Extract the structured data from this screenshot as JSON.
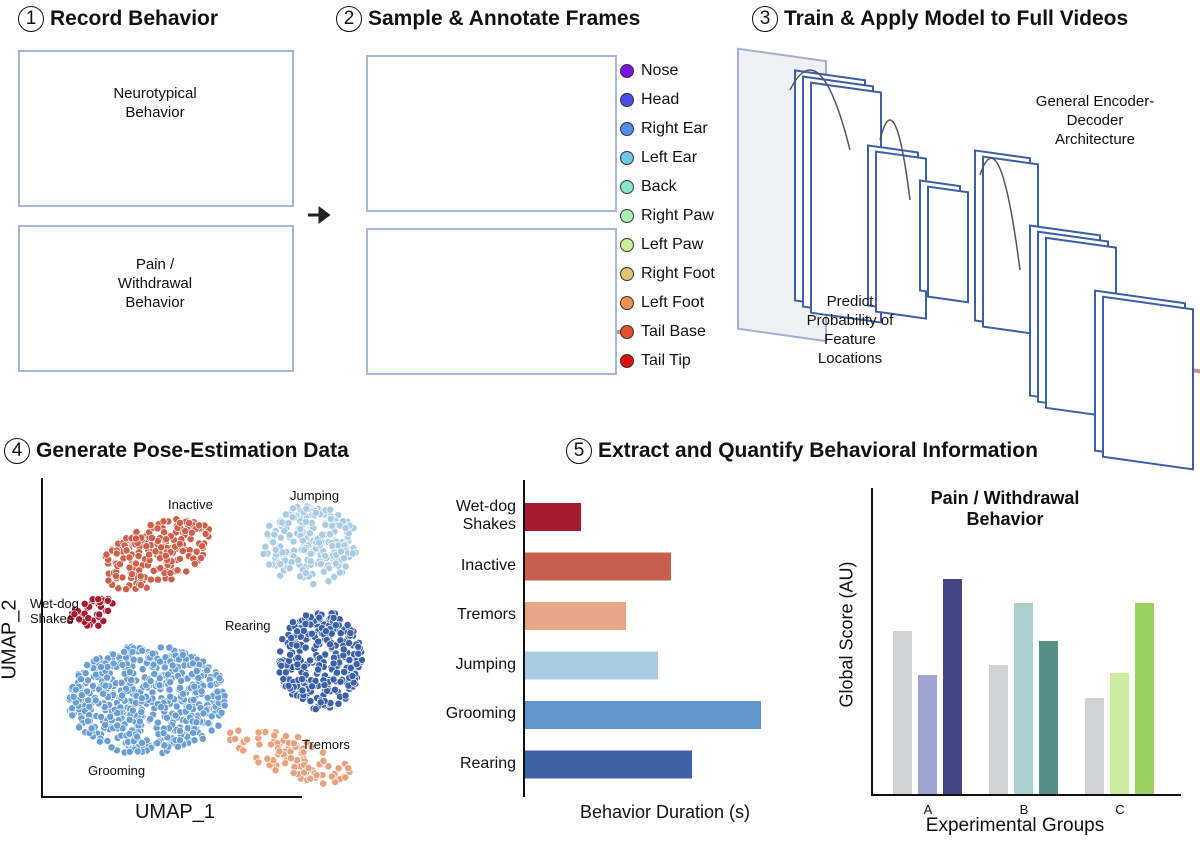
{
  "panels": {
    "p1": {
      "num": "1",
      "title": "Record Behavior",
      "video1": "Neurotypical\nBehavior",
      "video2": "Pain /\nWithdrawal\nBehavior"
    },
    "p2": {
      "num": "2",
      "title": "Sample & Annotate Frames"
    },
    "p3": {
      "num": "3",
      "title": "Train & Apply Model to Full Videos",
      "arch": "General Encoder-\nDecoder\nArchitecture",
      "predict": "Predict\nProbability of\nFeature\nLocations"
    },
    "p4": {
      "num": "4",
      "title": "Generate Pose-Estimation Data"
    },
    "p5": {
      "num": "5",
      "title": "Extract and Quantify Behavioral Information"
    }
  },
  "legend": [
    {
      "label": "Nose",
      "color": "#7a12e0"
    },
    {
      "label": "Head",
      "color": "#4a4ee8"
    },
    {
      "label": "Right Ear",
      "color": "#4f8ff0"
    },
    {
      "label": "Left Ear",
      "color": "#6cc8e6"
    },
    {
      "label": "Back",
      "color": "#84e6cf"
    },
    {
      "label": "Right Paw",
      "color": "#a6f0b6"
    },
    {
      "label": "Left Paw",
      "color": "#c9ef98"
    },
    {
      "label": "Right Foot",
      "color": "#dcc46e"
    },
    {
      "label": "Left Foot",
      "color": "#ec9250"
    },
    {
      "label": "Tail Base",
      "color": "#e2522e"
    },
    {
      "label": "Tail Tip",
      "color": "#e00f0f"
    }
  ],
  "chart_data": [
    {
      "type": "scatter",
      "xlabel": "UMAP_1",
      "ylabel": "UMAP_2",
      "clusters": [
        {
          "name": "Inactive",
          "color": "#cd5f4b"
        },
        {
          "name": "Wet-dog Shakes",
          "color": "#a51c30"
        },
        {
          "name": "Jumping",
          "color": "#a9cce3"
        },
        {
          "name": "Rearing",
          "color": "#3a60a8"
        },
        {
          "name": "Grooming",
          "color": "#6a9fd3"
        },
        {
          "name": "Tremors",
          "color": "#e9a27e"
        }
      ]
    },
    {
      "type": "bar",
      "orientation": "horizontal",
      "xlabel": "Behavior Duration (s)",
      "categories": [
        "Wet-dog\nShakes",
        "Inactive",
        "Tremors",
        "Jumping",
        "Grooming",
        "Rearing"
      ],
      "values": [
        56,
        146,
        101,
        133,
        236,
        167
      ],
      "colors": [
        "#a51c30",
        "#c65f4d",
        "#e6a587",
        "#a9cce3",
        "#6296cc",
        "#3d62a8"
      ]
    },
    {
      "type": "bar",
      "title": "Pain / Withdrawal\nBehavior",
      "xlabel": "Experimental Groups",
      "ylabel": "Global Score (AU)",
      "categories": [
        "A",
        "B",
        "C"
      ],
      "series": [
        {
          "values": [
            163,
            129,
            96
          ],
          "colors": [
            "#d1d2d6",
            "#d1d2d6",
            "#d1d2d6"
          ]
        },
        {
          "values": [
            119,
            191,
            121
          ],
          "colors": [
            "#a0a2d2",
            "#abd0cf",
            "#cdeca0"
          ]
        },
        {
          "values": [
            215,
            153,
            191
          ],
          "colors": [
            "#444683",
            "#568f87",
            "#98d160"
          ]
        }
      ]
    }
  ]
}
